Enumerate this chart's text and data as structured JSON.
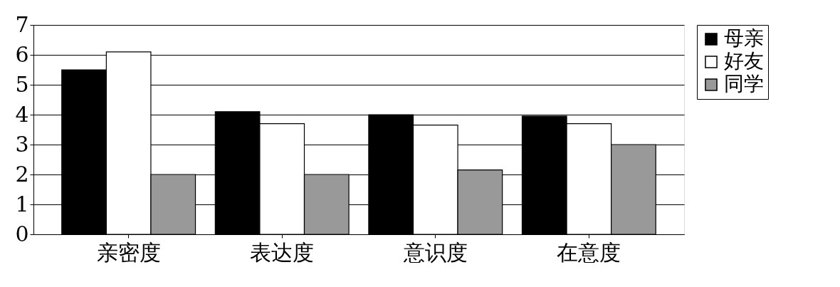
{
  "chart_data": {
    "type": "bar",
    "categories": [
      "亲密度",
      "表达度",
      "意识度",
      "在意度"
    ],
    "series": [
      {
        "name": "母亲",
        "color": "#000000",
        "values": [
          5.5,
          4.1,
          4.0,
          3.95
        ]
      },
      {
        "name": "好友",
        "color": "#ffffff",
        "values": [
          6.1,
          3.7,
          3.65,
          3.7
        ]
      },
      {
        "name": "同学",
        "color": "#999999",
        "values": [
          2.0,
          2.0,
          2.15,
          3.0
        ]
      }
    ],
    "ylim": [
      0,
      7
    ],
    "yticks": [
      0,
      1,
      2,
      3,
      4,
      5,
      6,
      7
    ],
    "grid": "y",
    "legend": "right"
  }
}
